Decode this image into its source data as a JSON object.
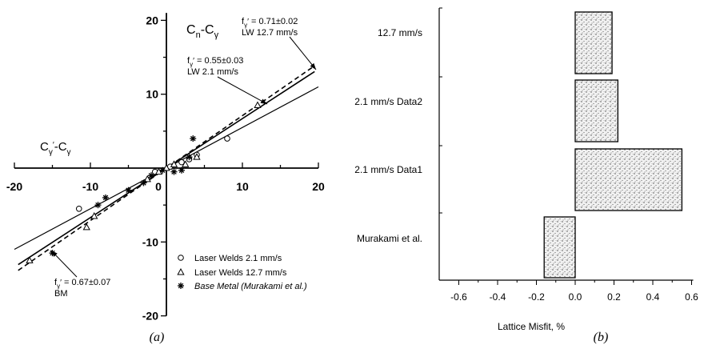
{
  "chart_data": [
    {
      "type": "scatter",
      "caption": "(a)",
      "xlim": [
        -20,
        20
      ],
      "ylim": [
        -20,
        20
      ],
      "x_ticks": [
        "-20",
        "-10",
        "0",
        "10",
        "20"
      ],
      "y_ticks": [
        "20",
        "10",
        "-10",
        "-20"
      ],
      "xlabel_parts": [
        "C",
        "γ",
        "′",
        "-C",
        "γ"
      ],
      "ylabel_parts": [
        "C",
        "n",
        "-C",
        "γ"
      ],
      "legend": {
        "placement": "bottom-right",
        "entries": [
          {
            "marker": "circle",
            "label": "Laser Welds 2.1 mm/s",
            "italic": false
          },
          {
            "marker": "triangle",
            "label": "Laser Welds 12.7 mm/s",
            "italic": false
          },
          {
            "marker": "asterisk",
            "label": "Base Metal",
            "suffix": " (Murakami et al.)",
            "italic": true
          }
        ]
      },
      "series": [
        {
          "name": "Laser Welds 2.1 mm/s",
          "marker": "circle",
          "points": [
            [
              -11.5,
              -5.5
            ],
            [
              -1.5,
              -0.5
            ],
            [
              0.5,
              0.2
            ],
            [
              2,
              0.8
            ],
            [
              3,
              1.2
            ],
            [
              4,
              1.8
            ],
            [
              8,
              4
            ]
          ]
        },
        {
          "name": "Laser Welds 12.7 mm/s",
          "marker": "triangle",
          "points": [
            [
              -18,
              -12.5
            ],
            [
              -10.5,
              -8
            ],
            [
              -9.5,
              -6.5
            ],
            [
              -2.5,
              -1.5
            ],
            [
              -1,
              -0.5
            ],
            [
              0,
              0
            ],
            [
              1,
              0.5
            ],
            [
              2.5,
              0.5
            ],
            [
              4,
              1.5
            ],
            [
              12,
              8.5
            ]
          ]
        },
        {
          "name": "Base Metal",
          "marker": "asterisk",
          "points": [
            [
              -15,
              -11.5
            ],
            [
              -9,
              -5
            ],
            [
              -8,
              -4
            ],
            [
              -5,
              -3
            ],
            [
              -3,
              -2
            ],
            [
              -2,
              -1
            ],
            [
              -0.5,
              -0.3
            ],
            [
              1,
              -0.5
            ],
            [
              2,
              -0.3
            ],
            [
              3,
              1.5
            ],
            [
              3.5,
              4
            ]
          ]
        }
      ],
      "fit_lines": [
        {
          "slope": 0.55,
          "style": "solid"
        },
        {
          "slope": 0.67,
          "style": "solid"
        },
        {
          "slope": 0.71,
          "style": "dashed"
        }
      ],
      "annotations": [
        {
          "symbol": "f",
          "sub": "γ",
          "prime": "′",
          "value": " = 0.71±0.02",
          "line2": "LW 12.7 mm/s"
        },
        {
          "symbol": "f",
          "sub": "γ",
          "prime": "′",
          "value": " = 0.55±0.03",
          "line2": "LW 2.1 mm/s"
        },
        {
          "symbol": "f",
          "sub": "γ",
          "prime": "′",
          "value": " = 0.67±0.07",
          "line2": "BM"
        }
      ]
    },
    {
      "type": "bar",
      "orientation": "horizontal",
      "caption": "(b)",
      "xlabel": "Lattice Misfit, %",
      "xlim": [
        -0.6,
        0.6
      ],
      "x_ticks": [
        "-0.6",
        "-0.4",
        "-0.2",
        "0.0",
        "0.2",
        "0.4",
        "0.6"
      ],
      "categories": [
        "12.7 mm/s",
        "2.1 mm/s Data2",
        "2.1 mm/s Data1",
        "Murakami et al."
      ],
      "values": [
        0.19,
        0.22,
        0.55,
        -0.16
      ]
    }
  ]
}
